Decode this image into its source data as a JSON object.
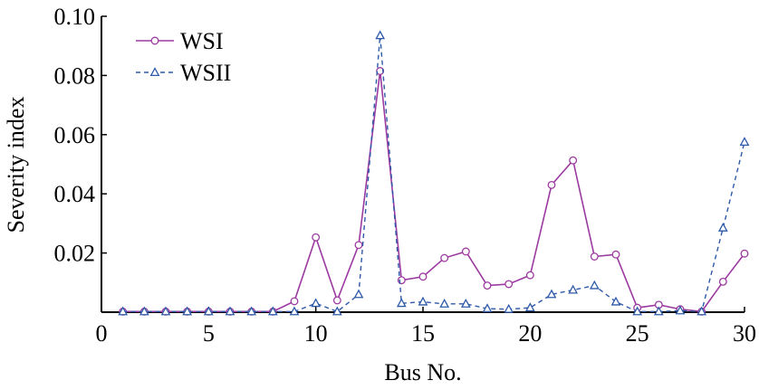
{
  "chart_data": {
    "type": "line",
    "title": "",
    "xlabel": "Bus No.",
    "ylabel": "Severity index",
    "xlim": [
      0,
      30
    ],
    "ylim": [
      0,
      0.1
    ],
    "x_ticks": [
      "0",
      "5",
      "10",
      "15",
      "20",
      "25",
      "30"
    ],
    "y_ticks": [
      "0.02",
      "0.04",
      "0.06",
      "0.08",
      "0.10"
    ],
    "grid": false,
    "legend": "top-left",
    "x": [
      1,
      2,
      3,
      4,
      5,
      6,
      7,
      8,
      9,
      10,
      11,
      12,
      13,
      14,
      15,
      16,
      17,
      18,
      19,
      20,
      21,
      22,
      23,
      24,
      25,
      26,
      27,
      28,
      29,
      30
    ],
    "series": [
      {
        "name": "WSI",
        "color": "#9b3aa0",
        "marker": "circle",
        "line_style": "solid",
        "values": [
          0.0002,
          0.0002,
          0.0002,
          0.0002,
          0.0002,
          0.0002,
          0.0002,
          0.0002,
          0.0037,
          0.0253,
          0.004,
          0.0227,
          0.0815,
          0.0108,
          0.012,
          0.0183,
          0.0205,
          0.009,
          0.0095,
          0.0125,
          0.043,
          0.0513,
          0.0188,
          0.0195,
          0.0015,
          0.0025,
          0.001,
          0.0002,
          0.0103,
          0.0198
        ]
      },
      {
        "name": "WSII",
        "color": "#2e59a8",
        "marker": "triangle",
        "line_style": "dashed",
        "values": [
          0.0002,
          0.0002,
          0.0002,
          0.0002,
          0.0002,
          0.0002,
          0.0002,
          0.0002,
          0.0002,
          0.003,
          0.0002,
          0.006,
          0.0935,
          0.003,
          0.0035,
          0.0028,
          0.0028,
          0.0012,
          0.001,
          0.0015,
          0.006,
          0.0075,
          0.009,
          0.0035,
          0.0002,
          0.0002,
          0.0005,
          0.0002,
          0.0285,
          0.0575
        ]
      }
    ]
  }
}
